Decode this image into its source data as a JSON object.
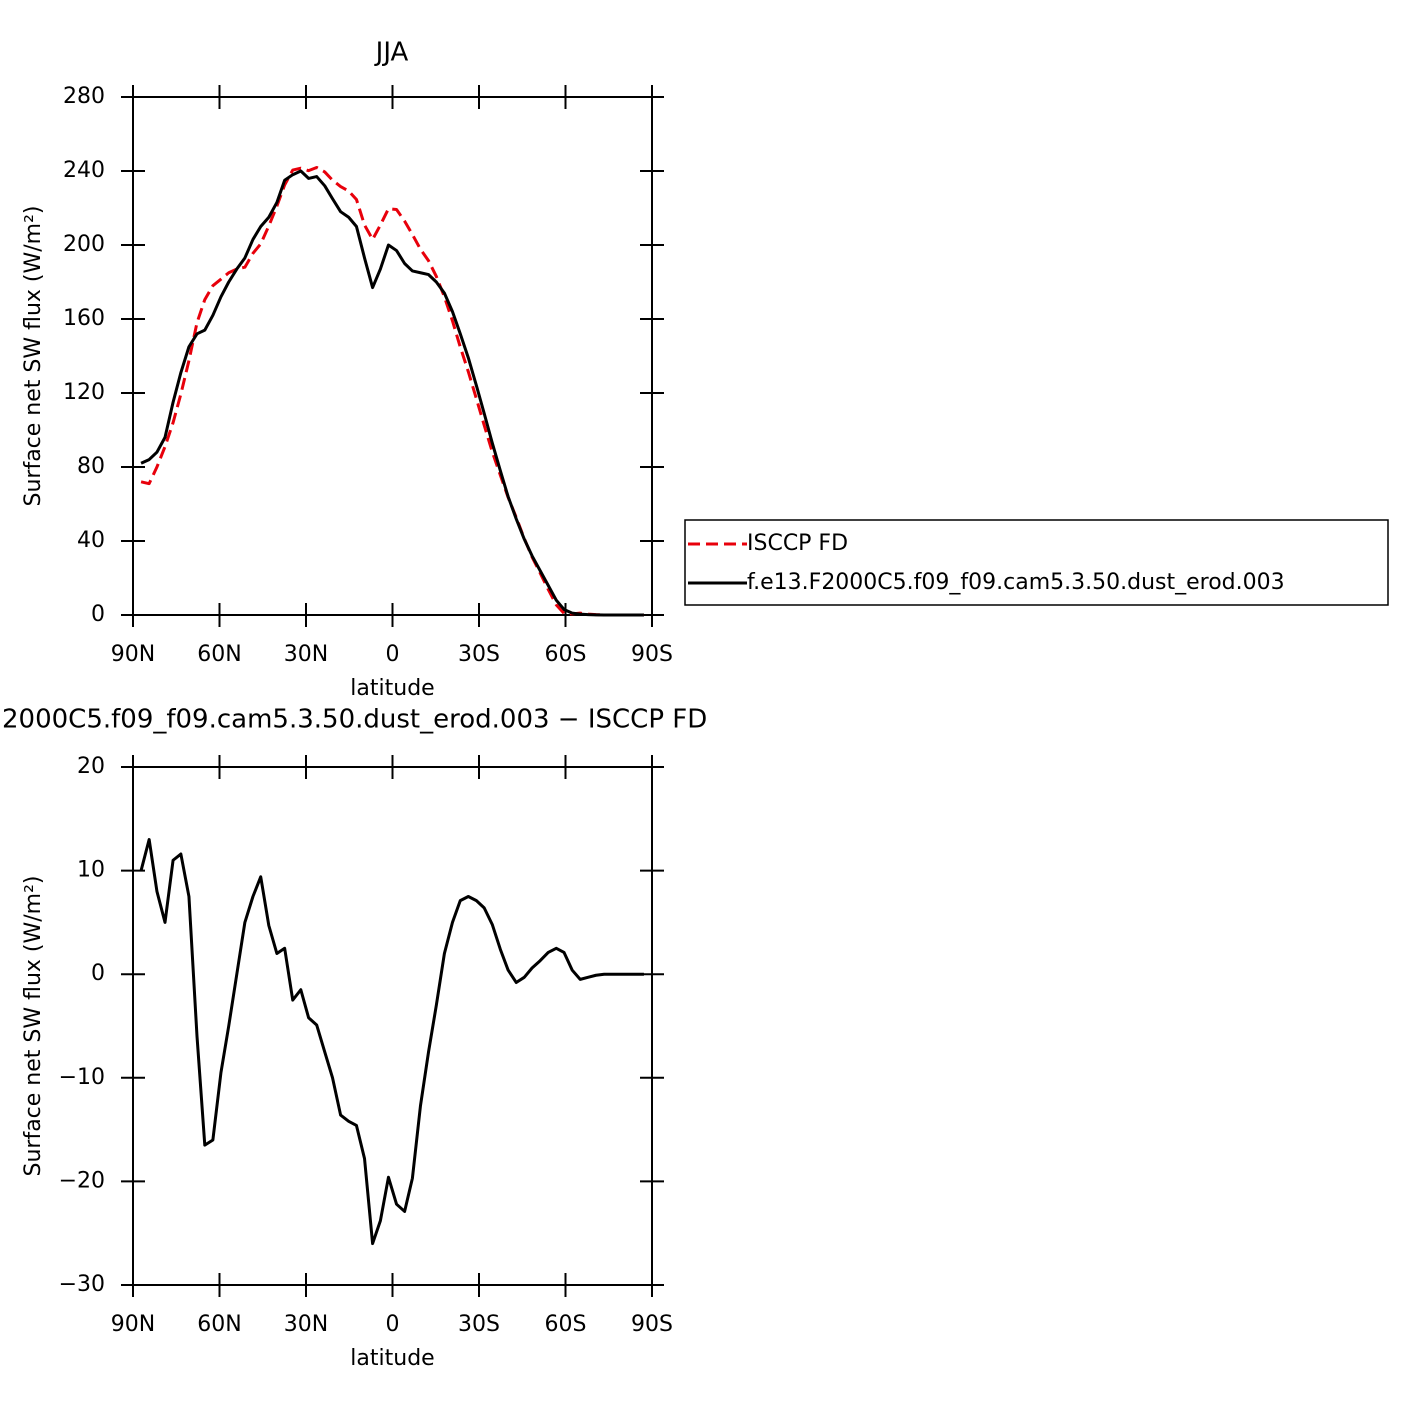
{
  "chart_data": [
    {
      "type": "line",
      "title": "JJA",
      "x_label": "latitude",
      "y_label": "Surface net SW flux (W/m²)",
      "x": [
        87.2,
        84.4,
        81.7,
        78.9,
        76.1,
        73.4,
        70.6,
        67.8,
        65.1,
        62.3,
        59.5,
        56.8,
        54.0,
        51.2,
        48.4,
        45.7,
        42.9,
        40.1,
        37.4,
        34.6,
        31.8,
        29.1,
        26.3,
        23.5,
        20.8,
        18.0,
        15.2,
        12.5,
        9.7,
        6.9,
        4.2,
        1.4,
        -1.4,
        -4.2,
        -6.9,
        -9.7,
        -12.5,
        -15.2,
        -18.0,
        -20.8,
        -23.5,
        -26.3,
        -29.1,
        -31.8,
        -34.6,
        -37.4,
        -40.1,
        -42.9,
        -45.7,
        -48.4,
        -51.2,
        -54.0,
        -56.8,
        -59.5,
        -62.3,
        -65.1,
        -67.8,
        -70.6,
        -73.4,
        -76.1,
        -78.9,
        -81.7,
        -84.4,
        -87.2
      ],
      "xlim": [
        90,
        -90
      ],
      "xticks": [
        {
          "value": 90,
          "label": "90N"
        },
        {
          "value": 60,
          "label": "60N"
        },
        {
          "value": 30,
          "label": "30N"
        },
        0,
        {
          "value": -30,
          "label": "30S"
        },
        {
          "value": -60,
          "label": "60S"
        },
        {
          "value": -90,
          "label": "90S"
        }
      ],
      "ylim": [
        0,
        280
      ],
      "yticks": [
        0,
        40,
        80,
        120,
        160,
        200,
        240,
        280
      ],
      "legend": "right",
      "series": [
        {
          "name": "ISCCP FD",
          "color": "#e8000b",
          "style": "dashed",
          "values": [
            72,
            71,
            80,
            91,
            104,
            119.4,
            137.5,
            158,
            170.5,
            178,
            181.5,
            185,
            187,
            188,
            195.5,
            200.6,
            210.3,
            221,
            232.5,
            240.5,
            241.5,
            240.2,
            241.9,
            239.5,
            235,
            231.6,
            229.2,
            224.6,
            210.8,
            203,
            210.8,
            219.6,
            219.2,
            212.9,
            205.7,
            197.7,
            191.5,
            183,
            172,
            159,
            144.9,
            131.5,
            116.9,
            102.6,
            88.2,
            75.6,
            63.6,
            52.8,
            41.3,
            31.4,
            22.7,
            13.9,
            5.5,
            0.9,
            0.6,
            1,
            0.5,
            0.2,
            0,
            0,
            0,
            0,
            0,
            0
          ]
        },
        {
          "name": "f.e13.F2000C5.f09_f09.cam5.3.50.dust_erod.003",
          "color": "#000000",
          "style": "solid",
          "values": [
            82,
            84,
            88,
            96,
            115,
            131,
            145,
            152,
            154,
            162,
            172,
            180,
            187,
            193,
            203,
            210,
            215,
            223,
            235,
            238,
            240,
            236,
            237,
            232,
            225,
            218,
            215,
            210,
            193,
            177,
            187,
            200,
            197,
            190,
            186,
            185,
            184,
            180,
            174,
            164,
            152,
            139,
            124,
            109,
            93,
            78,
            64,
            52,
            41,
            32,
            24,
            16,
            8,
            3,
            1,
            0.5,
            0.2,
            0.1,
            0,
            0,
            0,
            0,
            0,
            0
          ]
        }
      ]
    },
    {
      "type": "line",
      "title": "2000C5.f09_f09.cam5.3.50.dust_erod.003 − ISCCP FD",
      "x_label": "latitude",
      "y_label": "Surface net SW flux (W/m²)",
      "x": [
        87.2,
        84.4,
        81.7,
        78.9,
        76.1,
        73.4,
        70.6,
        67.8,
        65.1,
        62.3,
        59.5,
        56.8,
        54.0,
        51.2,
        48.4,
        45.7,
        42.9,
        40.1,
        37.4,
        34.6,
        31.8,
        29.1,
        26.3,
        23.5,
        20.8,
        18.0,
        15.2,
        12.5,
        9.7,
        6.9,
        4.2,
        1.4,
        -1.4,
        -4.2,
        -6.9,
        -9.7,
        -12.5,
        -15.2,
        -18.0,
        -20.8,
        -23.5,
        -26.3,
        -29.1,
        -31.8,
        -34.6,
        -37.4,
        -40.1,
        -42.9,
        -45.7,
        -48.4,
        -51.2,
        -54.0,
        -56.8,
        -59.5,
        -62.3,
        -65.1,
        -67.8,
        -70.6,
        -73.4,
        -76.1,
        -78.9,
        -81.7,
        -84.4,
        -87.2
      ],
      "xlim": [
        90,
        -90
      ],
      "xticks": [
        {
          "value": 90,
          "label": "90N"
        },
        {
          "value": 60,
          "label": "60N"
        },
        {
          "value": 30,
          "label": "30N"
        },
        0,
        {
          "value": -30,
          "label": "30S"
        },
        {
          "value": -60,
          "label": "60S"
        },
        {
          "value": -90,
          "label": "90S"
        }
      ],
      "ylim": [
        -30,
        20
      ],
      "yticks": [
        {
          "value": -30,
          "label": "−30"
        },
        {
          "value": -20,
          "label": "−20"
        },
        {
          "value": -10,
          "label": "−10"
        },
        0,
        10,
        20
      ],
      "series": [
        {
          "color": "#000000",
          "style": "solid",
          "values": [
            10,
            13,
            8,
            5,
            11,
            11.6,
            7.5,
            -6,
            -16.5,
            -16,
            -9.5,
            -5,
            0,
            5,
            7.5,
            9.4,
            4.7,
            2,
            2.5,
            -2.5,
            -1.5,
            -4.2,
            -4.9,
            -7.5,
            -10,
            -13.6,
            -14.2,
            -14.6,
            -17.8,
            -26,
            -23.8,
            -19.6,
            -22.2,
            -22.9,
            -19.7,
            -12.7,
            -7.5,
            -3,
            2,
            5,
            7.1,
            7.5,
            7.1,
            6.4,
            4.8,
            2.4,
            0.4,
            -0.8,
            -0.3,
            0.6,
            1.3,
            2.1,
            2.5,
            2.1,
            0.4,
            -0.5,
            -0.3,
            -0.1,
            0,
            0,
            0,
            0,
            0,
            0
          ]
        }
      ]
    }
  ]
}
